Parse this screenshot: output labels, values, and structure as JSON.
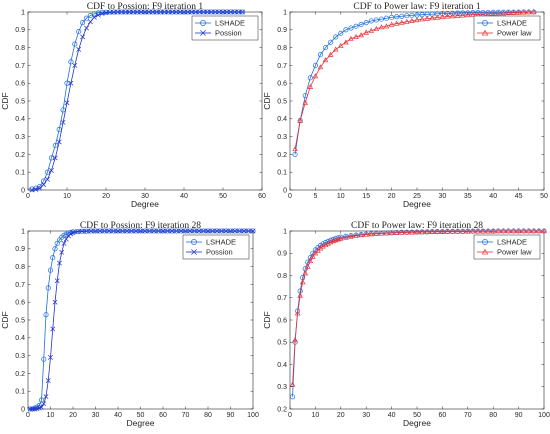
{
  "colors": {
    "lshade": "#1f6fe0",
    "other": "#e8333a",
    "poisson": "#2233cc",
    "axis": "#262626",
    "grid_bg": "#ffffff"
  },
  "chart_data": [
    {
      "type": "line",
      "title": "CDF to Possion: F9 iteration 1",
      "xlabel": "Degree",
      "ylabel": "CDF",
      "xlim": [
        0,
        60
      ],
      "ylim": [
        0,
        1
      ],
      "xticks": [
        0,
        10,
        20,
        30,
        40,
        50,
        60
      ],
      "yticks": [
        0,
        0.1,
        0.2,
        0.3,
        0.4,
        0.5,
        0.6,
        0.7,
        0.8,
        0.9,
        1
      ],
      "legend_position": "top-right",
      "series": [
        {
          "name": "LSHADE",
          "marker": "circle",
          "color_key": "lshade",
          "x": [
            1,
            2,
            3,
            4,
            5,
            6,
            7,
            8,
            9,
            10,
            11,
            12,
            13,
            14,
            15,
            16,
            17,
            18,
            19,
            20,
            21,
            22,
            23,
            24,
            25,
            26,
            27,
            28,
            29,
            30,
            31,
            32,
            33,
            34,
            35,
            36,
            37,
            38,
            39,
            40,
            41,
            42,
            43,
            44,
            45,
            46,
            47,
            48,
            49,
            50,
            51,
            52,
            53,
            54,
            55
          ],
          "y": [
            0.005,
            0.01,
            0.02,
            0.05,
            0.1,
            0.18,
            0.25,
            0.34,
            0.45,
            0.6,
            0.72,
            0.82,
            0.89,
            0.94,
            0.965,
            0.98,
            0.99,
            0.995,
            0.998,
            0.999,
            1,
            1,
            1,
            1,
            1,
            1,
            1,
            1,
            1,
            1,
            1,
            1,
            1,
            1,
            1,
            1,
            1,
            1,
            1,
            1,
            1,
            1,
            1,
            1,
            1,
            1,
            1,
            1,
            1,
            1,
            1,
            1,
            1,
            1,
            1
          ]
        },
        {
          "name": "Possion",
          "marker": "x",
          "color_key": "poisson",
          "x": [
            1,
            2,
            3,
            4,
            5,
            6,
            7,
            8,
            9,
            10,
            11,
            12,
            13,
            14,
            15,
            16,
            17,
            18,
            19,
            20,
            21,
            22,
            23,
            24,
            25,
            26,
            27,
            28,
            29,
            30,
            31,
            32,
            33,
            34,
            35,
            36,
            37,
            38,
            39,
            40,
            41,
            42,
            43,
            44,
            45,
            46,
            47,
            48,
            49,
            50,
            51,
            52,
            53,
            54,
            55
          ],
          "y": [
            0.0,
            0.003,
            0.01,
            0.03,
            0.06,
            0.11,
            0.18,
            0.27,
            0.38,
            0.49,
            0.6,
            0.7,
            0.79,
            0.86,
            0.91,
            0.945,
            0.97,
            0.983,
            0.991,
            0.996,
            0.998,
            0.999,
            1,
            1,
            1,
            1,
            1,
            1,
            1,
            1,
            1,
            1,
            1,
            1,
            1,
            1,
            1,
            1,
            1,
            1,
            1,
            1,
            1,
            1,
            1,
            1,
            1,
            1,
            1,
            1,
            1,
            1,
            1,
            1,
            1
          ]
        }
      ]
    },
    {
      "type": "line",
      "title": "CDF to Power law: F9 iteration 1",
      "xlabel": "Degree",
      "ylabel": "CDF",
      "xlim": [
        0,
        50
      ],
      "ylim": [
        0,
        1
      ],
      "xticks": [
        0,
        5,
        10,
        15,
        20,
        25,
        30,
        35,
        40,
        45,
        50
      ],
      "yticks": [
        0,
        0.1,
        0.2,
        0.3,
        0.4,
        0.5,
        0.6,
        0.7,
        0.8,
        0.9,
        1
      ],
      "legend_position": "top-right",
      "series": [
        {
          "name": "LSHADE",
          "marker": "circle",
          "color_key": "lshade",
          "x": [
            1,
            2,
            3,
            4,
            5,
            6,
            7,
            8,
            9,
            10,
            11,
            12,
            13,
            14,
            15,
            16,
            17,
            18,
            19,
            20,
            21,
            22,
            23,
            24,
            25,
            26,
            27,
            28,
            29,
            30,
            31,
            32,
            33,
            34,
            35,
            36,
            37,
            38,
            39,
            40,
            41,
            42,
            43,
            44,
            45,
            46,
            47,
            48
          ],
          "y": [
            0.2,
            0.39,
            0.53,
            0.63,
            0.7,
            0.76,
            0.8,
            0.83,
            0.86,
            0.88,
            0.9,
            0.91,
            0.92,
            0.93,
            0.94,
            0.95,
            0.955,
            0.96,
            0.965,
            0.97,
            0.973,
            0.976,
            0.979,
            0.981,
            0.983,
            0.985,
            0.987,
            0.988,
            0.99,
            0.991,
            0.992,
            0.993,
            0.994,
            0.995,
            0.995,
            0.996,
            0.996,
            0.997,
            0.997,
            0.998,
            0.998,
            0.998,
            0.999,
            0.999,
            0.999,
            1,
            1,
            1
          ]
        },
        {
          "name": "Power law",
          "marker": "triangle",
          "color_key": "other",
          "x": [
            1,
            2,
            3,
            4,
            5,
            6,
            7,
            8,
            9,
            10,
            11,
            12,
            13,
            14,
            15,
            16,
            17,
            18,
            19,
            20,
            21,
            22,
            23,
            24,
            25,
            26,
            27,
            28,
            29,
            30,
            31,
            32,
            33,
            34,
            35,
            36,
            37,
            38,
            39,
            40,
            41,
            42,
            43,
            44,
            45,
            46,
            47,
            48
          ],
          "y": [
            0.23,
            0.39,
            0.49,
            0.58,
            0.64,
            0.69,
            0.73,
            0.76,
            0.79,
            0.81,
            0.83,
            0.85,
            0.86,
            0.87,
            0.885,
            0.895,
            0.905,
            0.915,
            0.92,
            0.93,
            0.935,
            0.94,
            0.945,
            0.95,
            0.955,
            0.96,
            0.963,
            0.966,
            0.969,
            0.972,
            0.975,
            0.977,
            0.979,
            0.981,
            0.983,
            0.985,
            0.987,
            0.988,
            0.99,
            0.991,
            0.992,
            0.993,
            0.995,
            0.996,
            0.997,
            0.998,
            0.999,
            1
          ]
        }
      ]
    },
    {
      "type": "line",
      "title": "CDF to Possion: F9 iteration 28",
      "xlabel": "Degree",
      "ylabel": "CDF",
      "xlim": [
        0,
        100
      ],
      "ylim": [
        0,
        1
      ],
      "xticks": [
        0,
        10,
        20,
        30,
        40,
        50,
        60,
        70,
        80,
        90,
        100
      ],
      "yticks": [
        0,
        0.1,
        0.2,
        0.3,
        0.4,
        0.5,
        0.6,
        0.7,
        0.8,
        0.9,
        1
      ],
      "legend_position": "top-right",
      "series": [
        {
          "name": "LSHADE",
          "marker": "circle",
          "color_key": "lshade",
          "x": [
            1,
            2,
            3,
            4,
            5,
            6,
            7,
            8,
            9,
            10,
            11,
            12,
            13,
            14,
            15,
            16,
            17,
            18,
            19,
            20,
            22,
            24,
            26,
            28,
            30,
            32,
            34,
            36,
            38,
            40,
            42,
            44,
            46,
            48,
            50,
            52,
            54,
            56,
            58,
            60,
            62,
            64,
            66,
            68,
            70,
            72,
            74,
            76,
            78,
            80,
            82,
            84,
            86,
            88,
            90,
            92,
            94,
            96,
            98,
            100
          ],
          "y": [
            0.0,
            0.0,
            0.005,
            0.01,
            0.02,
            0.05,
            0.28,
            0.53,
            0.68,
            0.78,
            0.85,
            0.9,
            0.93,
            0.95,
            0.965,
            0.975,
            0.982,
            0.988,
            0.992,
            0.995,
            0.997,
            0.998,
            0.999,
            1,
            1,
            1,
            1,
            1,
            1,
            1,
            1,
            1,
            1,
            1,
            1,
            1,
            1,
            1,
            1,
            1,
            1,
            1,
            1,
            1,
            1,
            1,
            1,
            1,
            1,
            1,
            1,
            1,
            1,
            1,
            1,
            1,
            1,
            1,
            1,
            1
          ]
        },
        {
          "name": "Possion",
          "marker": "x",
          "color_key": "poisson",
          "x": [
            1,
            2,
            3,
            4,
            5,
            6,
            7,
            8,
            9,
            10,
            11,
            12,
            13,
            14,
            15,
            16,
            17,
            18,
            19,
            20,
            22,
            24,
            26,
            28,
            30,
            32,
            34,
            36,
            38,
            40,
            42,
            44,
            46,
            48,
            50,
            52,
            54,
            56,
            58,
            60,
            62,
            64,
            66,
            68,
            70,
            72,
            74,
            76,
            78,
            80,
            82,
            84,
            86,
            88,
            90,
            92,
            94,
            96,
            98,
            100
          ],
          "y": [
            0.0,
            0.0,
            0.0,
            0.002,
            0.005,
            0.01,
            0.03,
            0.07,
            0.16,
            0.29,
            0.45,
            0.6,
            0.72,
            0.82,
            0.88,
            0.93,
            0.955,
            0.972,
            0.983,
            0.99,
            0.996,
            0.998,
            0.999,
            1,
            1,
            1,
            1,
            1,
            1,
            1,
            1,
            1,
            1,
            1,
            1,
            1,
            1,
            1,
            1,
            1,
            1,
            1,
            1,
            1,
            1,
            1,
            1,
            1,
            1,
            1,
            1,
            1,
            1,
            1,
            1,
            1,
            1,
            1,
            1,
            1
          ]
        }
      ]
    },
    {
      "type": "line",
      "title": "CDF to Power law: F9 iteration 28",
      "xlabel": "Degree",
      "ylabel": "CDF",
      "xlim": [
        0,
        100
      ],
      "ylim": [
        0.2,
        1
      ],
      "xticks": [
        0,
        10,
        20,
        30,
        40,
        50,
        60,
        70,
        80,
        90,
        100
      ],
      "yticks": [
        0.2,
        0.3,
        0.4,
        0.5,
        0.6,
        0.7,
        0.8,
        0.9,
        1
      ],
      "legend_position": "top-right",
      "series": [
        {
          "name": "LSHADE",
          "marker": "circle",
          "color_key": "lshade",
          "x": [
            1,
            2,
            3,
            4,
            5,
            6,
            7,
            8,
            9,
            10,
            11,
            12,
            13,
            14,
            15,
            16,
            17,
            18,
            19,
            20,
            22,
            24,
            26,
            28,
            30,
            32,
            34,
            36,
            38,
            40,
            42,
            44,
            46,
            48,
            50,
            52,
            54,
            56,
            58,
            60,
            62,
            64,
            66,
            68,
            70,
            72,
            74,
            76,
            78,
            80,
            82,
            84,
            86,
            88,
            90,
            92,
            94,
            96,
            98,
            100
          ],
          "y": [
            0.255,
            0.5,
            0.64,
            0.73,
            0.79,
            0.83,
            0.86,
            0.88,
            0.9,
            0.915,
            0.925,
            0.935,
            0.942,
            0.948,
            0.953,
            0.958,
            0.962,
            0.966,
            0.969,
            0.972,
            0.976,
            0.979,
            0.982,
            0.984,
            0.986,
            0.988,
            0.989,
            0.99,
            0.991,
            0.992,
            0.993,
            0.994,
            0.994,
            0.995,
            0.995,
            0.996,
            0.996,
            0.997,
            0.997,
            0.997,
            0.998,
            0.998,
            0.998,
            0.998,
            0.999,
            0.999,
            0.999,
            0.999,
            0.999,
            0.999,
            1,
            1,
            1,
            1,
            1,
            1,
            1,
            1,
            1,
            1
          ]
        },
        {
          "name": "Power law",
          "marker": "triangle",
          "color_key": "other",
          "x": [
            1,
            2,
            3,
            4,
            5,
            6,
            7,
            8,
            9,
            10,
            11,
            12,
            13,
            14,
            15,
            16,
            17,
            18,
            19,
            20,
            22,
            24,
            26,
            28,
            30,
            32,
            34,
            36,
            38,
            40,
            42,
            44,
            46,
            48,
            50,
            52,
            54,
            56,
            58,
            60,
            62,
            64,
            66,
            68,
            70,
            72,
            74,
            76,
            78,
            80,
            82,
            84,
            86,
            88,
            90,
            92,
            94,
            96,
            98,
            100
          ],
          "y": [
            0.31,
            0.51,
            0.63,
            0.71,
            0.77,
            0.81,
            0.84,
            0.865,
            0.885,
            0.9,
            0.912,
            0.922,
            0.931,
            0.938,
            0.944,
            0.95,
            0.955,
            0.959,
            0.963,
            0.966,
            0.971,
            0.975,
            0.979,
            0.982,
            0.984,
            0.986,
            0.988,
            0.989,
            0.99,
            0.991,
            0.992,
            0.993,
            0.994,
            0.994,
            0.995,
            0.995,
            0.996,
            0.996,
            0.997,
            0.997,
            0.997,
            0.998,
            0.998,
            0.998,
            0.998,
            0.999,
            0.999,
            0.999,
            0.999,
            0.999,
            1,
            1,
            1,
            1,
            1,
            1,
            1,
            1,
            1,
            1
          ]
        }
      ]
    }
  ]
}
